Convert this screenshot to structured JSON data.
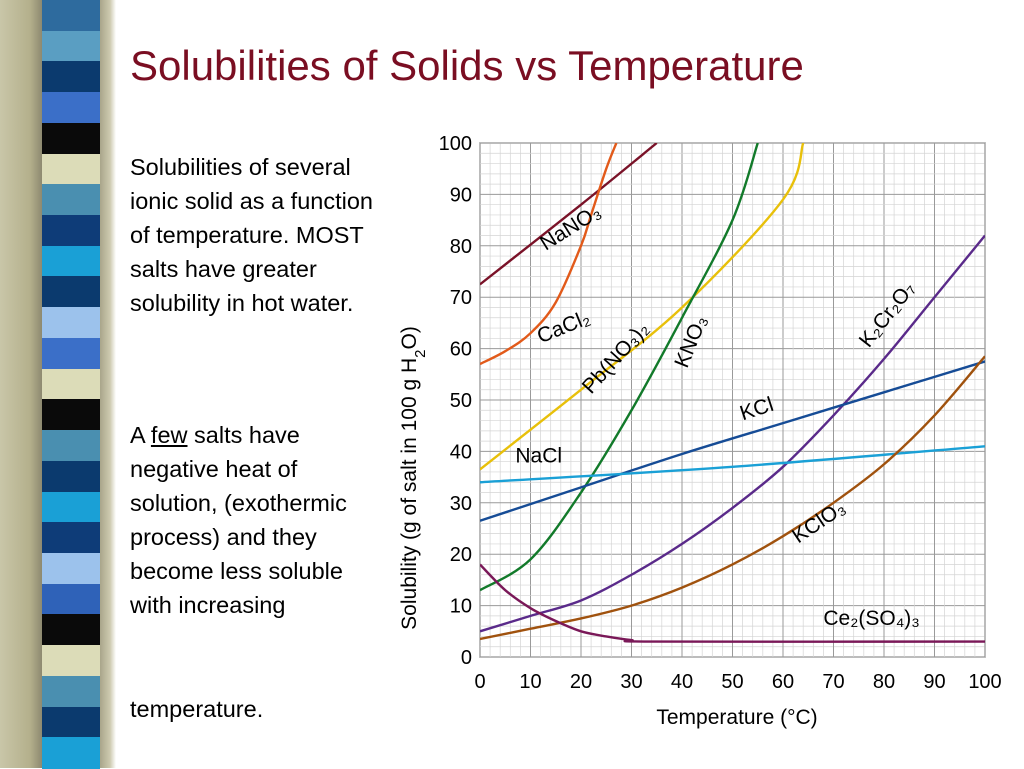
{
  "slide": {
    "title": "Solubilities of Solids vs Temperature",
    "para1": "Solubilities of several ionic solid as a function of temperature. MOST salts have greater solubility in hot water.",
    "para2_prefix": "A",
    "para2_underlined": "few",
    "para2_rest": "salts have negative heat of solution, (exothermic process) and they become less soluble with increasing",
    "para2_last": "temperature."
  },
  "stripe_colors": [
    "#2e6b9e",
    "#5a9ec2",
    "#0b3a6e",
    "#3b6fc8",
    "#0a0a0a",
    "#dcdcb8",
    "#4a8fb0",
    "#0e3c78",
    "#1aa0d6",
    "#0b3a6e",
    "#9cc2ec",
    "#3b6fc8",
    "#dcdcb8",
    "#0a0a0a",
    "#4a8fb0",
    "#0b3a6e",
    "#1aa0d6",
    "#0e3c78",
    "#9cc2ec",
    "#2f62b8",
    "#0a0a0a",
    "#dcdcb8",
    "#4a8fb0",
    "#0b3a6e",
    "#1aa0d6"
  ],
  "chart_data": {
    "type": "line",
    "xlabel": "Temperature (°C)",
    "ylabel": "Solubility (g of salt in 100 g H2O)",
    "xlim": [
      0,
      100
    ],
    "ylim": [
      0,
      100
    ],
    "xticks": [
      0,
      10,
      20,
      30,
      40,
      50,
      60,
      70,
      80,
      90,
      100
    ],
    "yticks": [
      0,
      10,
      20,
      30,
      40,
      50,
      60,
      70,
      80,
      90,
      100
    ],
    "grid": true,
    "series": [
      {
        "name": "NaNO3",
        "color": "#7a1228",
        "label": "NaNO₃",
        "x": [
          0,
          20,
          35
        ],
        "y": [
          72.5,
          88,
          100
        ]
      },
      {
        "name": "CaCl2",
        "color": "#e25a1a",
        "label": "CaCl₂",
        "x": [
          0,
          5,
          10,
          15,
          20,
          22,
          25,
          27
        ],
        "y": [
          57,
          59.5,
          63,
          69,
          80,
          86,
          95,
          100
        ]
      },
      {
        "name": "Pb(NO3)2",
        "color": "#e8c00a",
        "label": "Pb(NO₃)₂",
        "x": [
          0,
          20,
          40,
          60,
          64
        ],
        "y": [
          36.5,
          52,
          68,
          89,
          100
        ]
      },
      {
        "name": "KNO3",
        "color": "#127a2a",
        "label": "KNO₃",
        "x": [
          0,
          10,
          20,
          30,
          40,
          50,
          55
        ],
        "y": [
          13,
          19,
          32,
          48,
          66,
          85,
          100
        ]
      },
      {
        "name": "K2Cr2O7",
        "color": "#5a2a8a",
        "label": "K₂Cr₂O₇",
        "x": [
          0,
          10,
          20,
          30,
          40,
          50,
          60,
          70,
          80,
          90,
          100
        ],
        "y": [
          5,
          8,
          11,
          16,
          22,
          29,
          37,
          47,
          58,
          70,
          82
        ]
      },
      {
        "name": "KCl",
        "color": "#164c96",
        "label": "KCl",
        "x": [
          0,
          20,
          40,
          60,
          80,
          100
        ],
        "y": [
          26.5,
          33,
          39.5,
          45.5,
          51.5,
          57.5
        ]
      },
      {
        "name": "NaCl",
        "color": "#1aa0d6",
        "label": "NaCl",
        "x": [
          0,
          50,
          100
        ],
        "y": [
          34,
          37,
          41
        ]
      },
      {
        "name": "KClO3",
        "color": "#a0520e",
        "label": "KClO₃",
        "x": [
          0,
          10,
          20,
          30,
          40,
          50,
          60,
          70,
          80,
          90,
          100
        ],
        "y": [
          3.5,
          5.5,
          7.5,
          10,
          13.5,
          18,
          23.5,
          30,
          37.5,
          47,
          58.5
        ]
      },
      {
        "name": "Ce2(SO4)3",
        "color": "#7a1858",
        "label": "Ce₂(SO₄)₃",
        "x": [
          0,
          5,
          10,
          15,
          20,
          25,
          30,
          35,
          100
        ],
        "y": [
          18,
          13,
          9.5,
          7,
          5,
          4,
          3.3,
          3,
          3
        ]
      }
    ]
  }
}
